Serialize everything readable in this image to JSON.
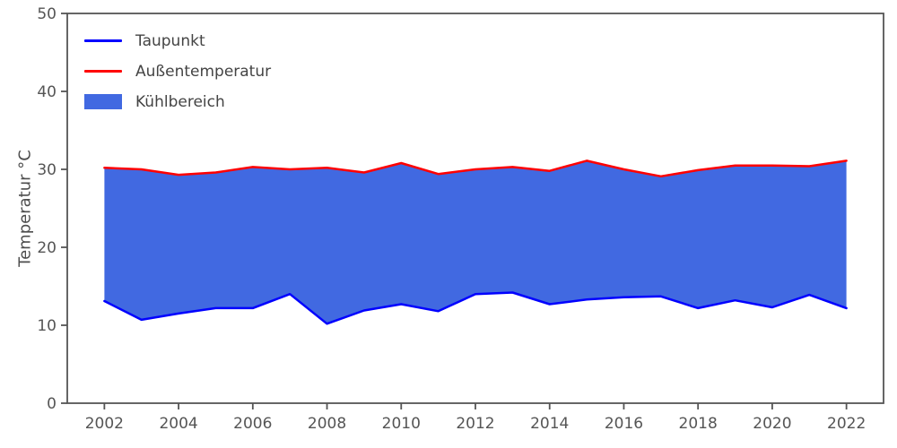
{
  "chart_data": {
    "type": "area",
    "title": "",
    "xlabel": "",
    "ylabel": "Temperatur °C",
    "x": [
      2002,
      2003,
      2004,
      2005,
      2006,
      2007,
      2008,
      2009,
      2010,
      2011,
      2012,
      2013,
      2014,
      2015,
      2016,
      2017,
      2018,
      2019,
      2020,
      2021,
      2022
    ],
    "series": [
      {
        "name": "Taupunkt",
        "color": "#0000ff",
        "values": [
          13.1,
          10.7,
          11.5,
          12.2,
          12.2,
          14.0,
          10.2,
          11.9,
          12.7,
          11.8,
          14.0,
          14.2,
          12.7,
          13.3,
          13.6,
          13.7,
          12.2,
          13.2,
          12.3,
          13.9,
          12.2
        ]
      },
      {
        "name": "Außentemperatur",
        "color": "#ff0000",
        "values": [
          30.2,
          30.0,
          29.3,
          29.6,
          30.3,
          30.0,
          30.2,
          29.6,
          30.8,
          29.4,
          30.0,
          30.3,
          29.8,
          31.1,
          30.0,
          29.1,
          29.9,
          30.5,
          30.5,
          30.4,
          31.1
        ]
      }
    ],
    "fill": {
      "name": "Kühlbereich",
      "color": "#4169e1",
      "between": [
        "Taupunkt",
        "Außentemperatur"
      ]
    },
    "xlim": [
      2001,
      2023
    ],
    "ylim": [
      0,
      50
    ],
    "xticks": [
      2002,
      2004,
      2006,
      2008,
      2010,
      2012,
      2014,
      2016,
      2018,
      2020,
      2022
    ],
    "yticks": [
      0,
      10,
      20,
      30,
      40,
      50
    ],
    "grid": false,
    "axis_color": "#555555",
    "legend": {
      "position": "upper-left",
      "entries": [
        "Taupunkt",
        "Außentemperatur",
        "Kühlbereich"
      ]
    }
  }
}
